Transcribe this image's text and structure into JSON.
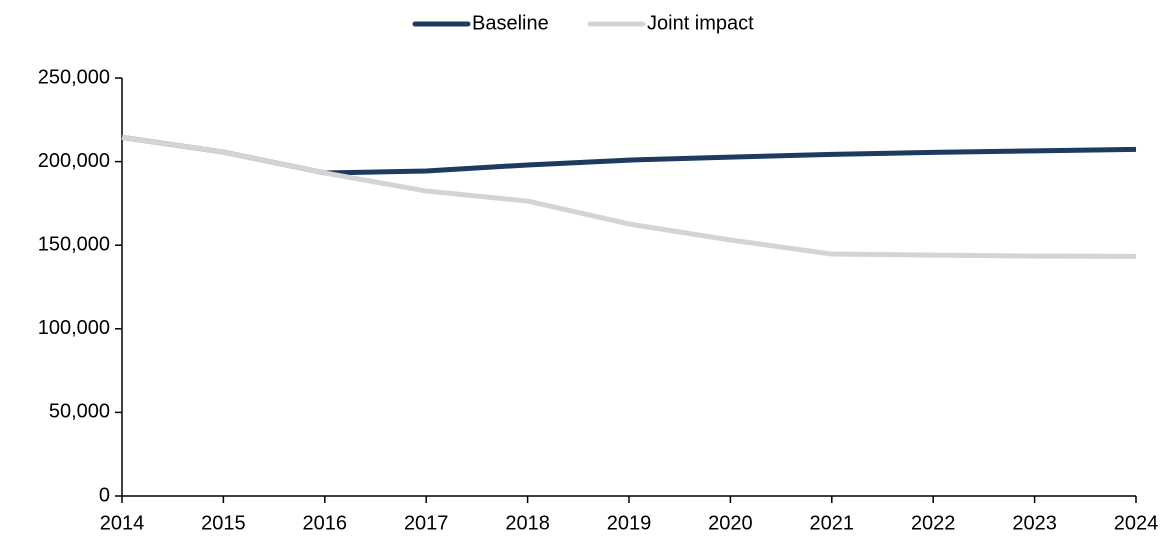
{
  "chart_data": {
    "type": "line",
    "x": [
      2014,
      2015,
      2016,
      2017,
      2018,
      2019,
      2020,
      2021,
      2022,
      2023,
      2024
    ],
    "series": [
      {
        "name": "Baseline",
        "color": "#1d3a5f",
        "values": [
          214500,
          205700,
          193200,
          194400,
          198000,
          200900,
          202700,
          204300,
          205500,
          206400,
          207300
        ]
      },
      {
        "name": "Joint impact",
        "color": "#d4d4d4",
        "values": [
          214500,
          205700,
          193200,
          182400,
          176400,
          162700,
          153100,
          144700,
          144100,
          143500,
          143300
        ]
      }
    ],
    "xlim": [
      2014,
      2024
    ],
    "xticks": [
      2014,
      2015,
      2016,
      2017,
      2018,
      2019,
      2020,
      2021,
      2022,
      2023,
      2024
    ],
    "ylim": [
      0,
      250000
    ],
    "yticks": [
      0,
      {
        "value": 50000,
        "label": "50,000"
      },
      {
        "value": 100000,
        "label": "100,000"
      },
      {
        "value": 150000,
        "label": "150,000"
      },
      {
        "value": 200000,
        "label": "200,000"
      },
      {
        "value": 250000,
        "label": "250,000"
      }
    ],
    "grid": false,
    "legend": "top"
  }
}
